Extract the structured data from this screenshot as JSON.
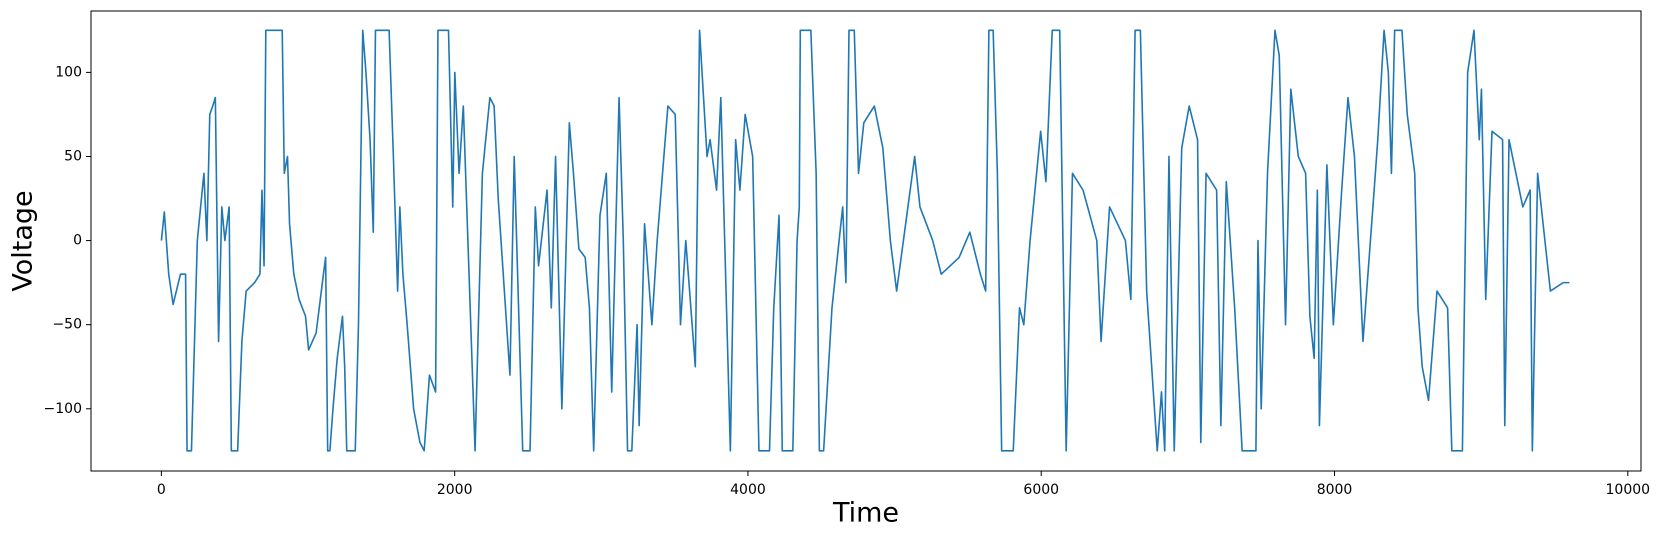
{
  "chart_data": {
    "type": "line",
    "x_label": "Time",
    "y_label": "Voltage",
    "color": "#1f77b4",
    "x": [
      0,
      20,
      50,
      80,
      130,
      165,
      175,
      205,
      245,
      290,
      310,
      330,
      350,
      368,
      390,
      412,
      433,
      462,
      477,
      520,
      549,
      578,
      636,
      672,
      686,
      700,
      712,
      824,
      838,
      860,
      874,
      903,
      939,
      983,
      1004,
      1055,
      1105,
      1120,
      1134,
      1149,
      1170,
      1199,
      1235,
      1250,
      1264,
      1322,
      1344,
      1373,
      1395,
      1423,
      1445,
      1460,
      1553,
      1582,
      1611,
      1626,
      1647,
      1676,
      1720,
      1763,
      1792,
      1828,
      1870,
      1886,
      1958,
      1987,
      2001,
      2030,
      2059,
      2139,
      2189,
      2240,
      2269,
      2297,
      2377,
      2406,
      2464,
      2514,
      2550,
      2572,
      2630,
      2659,
      2688,
      2731,
      2782,
      2810,
      2847,
      2890,
      2919,
      2948,
      2991,
      3034,
      3071,
      3121,
      3150,
      3179,
      3208,
      3244,
      3258,
      3295,
      3345,
      3381,
      3454,
      3504,
      3540,
      3576,
      3641,
      3670,
      3721,
      3742,
      3786,
      3815,
      3880,
      3916,
      3945,
      3981,
      4032,
      4075,
      4147,
      4176,
      4212,
      4234,
      4306,
      4335,
      4350,
      4357,
      4429,
      4465,
      4487,
      4516,
      4573,
      4646,
      4668,
      4689,
      4725,
      4754,
      4790,
      4862,
      4920,
      4971,
      5014,
      5137,
      5173,
      5260,
      5318,
      5440,
      5513,
      5585,
      5621,
      5643,
      5672,
      5701,
      5730,
      5809,
      5852,
      5881,
      5924,
      5996,
      6032,
      6075,
      6126,
      6148,
      6170,
      6213,
      6285,
      6379,
      6408,
      6466,
      6574,
      6611,
      6640,
      6676,
      6719,
      6791,
      6820,
      6842,
      6871,
      6907,
      6958,
      7009,
      7066,
      7088,
      7124,
      7196,
      7225,
      7262,
      7319,
      7370,
      7464,
      7478,
      7500,
      7543,
      7594,
      7623,
      7666,
      7702,
      7753,
      7803,
      7832,
      7861,
      7883,
      7897,
      7948,
      7992,
      8049,
      8092,
      8136,
      8194,
      8266,
      8295,
      8338,
      8367,
      8388,
      8410,
      8460,
      8496,
      8547,
      8569,
      8598,
      8641,
      8699,
      8771,
      8800,
      8872,
      8908,
      8951,
      8987,
      9002,
      9031,
      9074,
      9146,
      9161,
      9190,
      9284,
      9334,
      9349,
      9385,
      9472,
      9559,
      9602
    ],
    "values": [
      0,
      17,
      -20,
      -38,
      -20,
      -20,
      -125,
      -125,
      0,
      40,
      0,
      75,
      80,
      85,
      -60,
      20,
      0,
      20,
      -125,
      -125,
      -60,
      -30,
      -25,
      -20,
      30,
      -15,
      125,
      125,
      40,
      50,
      10,
      -20,
      -35,
      -45,
      -65,
      -55,
      -20,
      -10,
      -125,
      -125,
      -100,
      -70,
      -45,
      -75,
      -125,
      -125,
      -50,
      125,
      100,
      60,
      5,
      125,
      125,
      50,
      -30,
      20,
      -20,
      -50,
      -100,
      -120,
      -125,
      -80,
      -90,
      125,
      125,
      20,
      100,
      40,
      80,
      -125,
      40,
      85,
      80,
      25,
      -80,
      50,
      -125,
      -125,
      20,
      -15,
      30,
      -40,
      50,
      -100,
      70,
      40,
      -5,
      -10,
      -40,
      -125,
      15,
      40,
      -90,
      85,
      0,
      -125,
      -125,
      -50,
      -110,
      10,
      -50,
      0,
      80,
      75,
      -50,
      0,
      -75,
      125,
      50,
      60,
      30,
      85,
      -125,
      60,
      30,
      75,
      50,
      -125,
      -125,
      -40,
      15,
      -125,
      -125,
      0,
      20,
      125,
      125,
      40,
      -125,
      -125,
      -40,
      20,
      -25,
      125,
      125,
      40,
      70,
      80,
      55,
      0,
      -30,
      50,
      20,
      0,
      -20,
      -10,
      5,
      -20,
      -30,
      125,
      125,
      40,
      -125,
      -125,
      -40,
      -50,
      0,
      65,
      35,
      125,
      125,
      0,
      -125,
      40,
      30,
      0,
      -60,
      20,
      0,
      -35,
      125,
      125,
      -30,
      -125,
      -90,
      -125,
      50,
      -125,
      55,
      80,
      60,
      -120,
      40,
      30,
      -110,
      35,
      -40,
      -125,
      -125,
      0,
      -100,
      40,
      125,
      110,
      -50,
      90,
      50,
      40,
      -45,
      -70,
      30,
      -110,
      45,
      -50,
      30,
      85,
      50,
      -60,
      25,
      60,
      125,
      100,
      40,
      125,
      125,
      75,
      40,
      -40,
      -75,
      -95,
      -30,
      -40,
      -125,
      -125,
      100,
      125,
      60,
      90,
      -35,
      65,
      60,
      -110,
      60,
      20,
      30,
      -125,
      40,
      -30,
      -25,
      -25
    ],
    "xlim": [
      -480,
      10090
    ],
    "ylim": [
      -137,
      136.5
    ],
    "xticks": [
      0,
      2000,
      4000,
      6000,
      8000,
      10000
    ],
    "yticks": [
      {
        "value": -100,
        "label": "−100"
      },
      {
        "value": -50,
        "label": "−50"
      },
      0,
      50,
      100
    ]
  }
}
